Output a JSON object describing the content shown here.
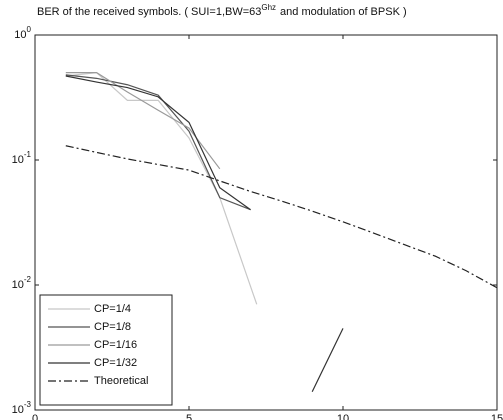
{
  "chart_data": {
    "type": "line",
    "title": [
      "BER of the received symbols. ( SUI=1,BW=63",
      "Ghz",
      "and modulation of BPSK )"
    ],
    "xlim": [
      0,
      15
    ],
    "xticks": [
      0,
      5,
      10,
      15
    ],
    "ylim": [
      0.001,
      1
    ],
    "log_y": true,
    "yticks": [
      {
        "value": 1,
        "label": "10^0"
      },
      {
        "value": 0.1,
        "label": "10^-1"
      },
      {
        "value": 0.01,
        "label": "10^-2"
      },
      {
        "value": 0.001,
        "label": "10^-3"
      }
    ],
    "legend": "lower left",
    "series": [
      {
        "name": "CP=1/4",
        "color": "#c8c8c8",
        "dash": "none",
        "x": [
          1,
          2,
          3,
          4,
          5,
          6,
          7.2
        ],
        "values": [
          0.47,
          0.5,
          0.3,
          0.3,
          0.15,
          0.05,
          0.007
        ]
      },
      {
        "name": "CP=1/8",
        "color": "#555555",
        "dash": "none",
        "x": [
          1,
          2,
          3,
          4,
          5,
          6,
          7
        ],
        "values": [
          0.48,
          0.45,
          0.4,
          0.33,
          0.17,
          0.05,
          0.04
        ]
      },
      {
        "name": "CP=1/16",
        "color": "#9a9a9a",
        "dash": "none",
        "x": [
          1,
          2,
          3,
          4,
          5,
          6
        ],
        "values": [
          0.5,
          0.5,
          0.35,
          0.25,
          0.18,
          0.085
        ]
      },
      {
        "name": "CP=1/32",
        "color": "#333333",
        "dash": "none",
        "x": [
          1,
          2,
          3,
          4,
          5,
          6,
          7,
          8,
          9,
          10
        ],
        "values": [
          0.47,
          0.42,
          0.38,
          0.32,
          0.2,
          0.06,
          0.04,
          null,
          0.0014,
          0.0045
        ]
      },
      {
        "name": "Theoretical",
        "color": "#222222",
        "dash": "8 3 2 3",
        "x": [
          1,
          2,
          3,
          4,
          5,
          6,
          7,
          8,
          9,
          10,
          11,
          12,
          13,
          14,
          15
        ],
        "values": [
          0.13,
          0.115,
          0.102,
          0.092,
          0.083,
          0.068,
          0.056,
          0.047,
          0.039,
          0.032,
          0.026,
          0.021,
          0.017,
          0.013,
          0.0095
        ]
      }
    ]
  }
}
